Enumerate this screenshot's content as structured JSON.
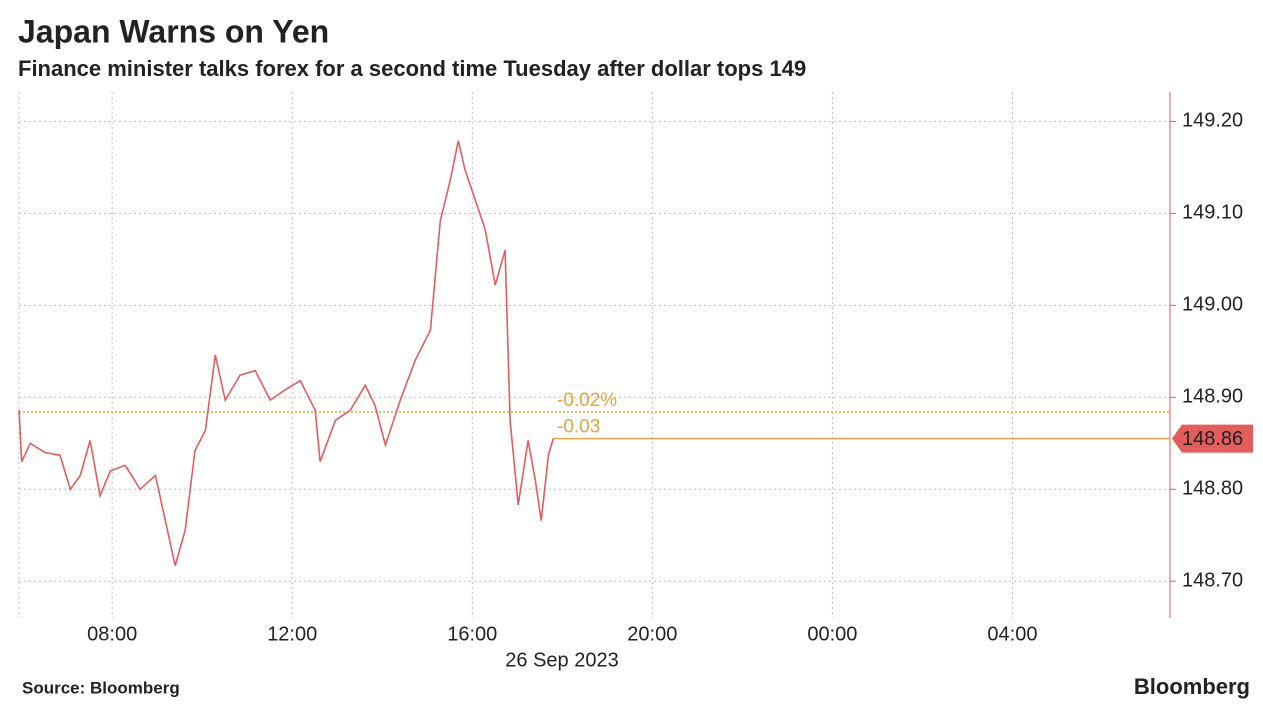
{
  "chart_data": {
    "type": "line",
    "title": "Japan Warns on Yen",
    "subtitle": "Finance minister talks forex for a second time Tuesday after dollar tops 149",
    "x_axis_label": "26 Sep 2023",
    "x": [
      5.93,
      5.99,
      6.18,
      6.51,
      6.84,
      7.07,
      7.29,
      7.51,
      7.73,
      7.96,
      8.29,
      8.62,
      8.96,
      9.18,
      9.4,
      9.62,
      9.84,
      10.07,
      10.29,
      10.51,
      10.84,
      11.18,
      11.51,
      11.84,
      12.18,
      12.51,
      12.62,
      12.96,
      13.29,
      13.62,
      13.84,
      14.07,
      14.4,
      14.73,
      15.07,
      15.29,
      15.51,
      15.69,
      15.84,
      16.07,
      16.29,
      16.51,
      16.73,
      16.84,
      17.02,
      17.24,
      17.4,
      17.53,
      17.69,
      17.8
    ],
    "series": [
      {
        "color": "#e35d5d",
        "values": [
          148.886,
          148.83,
          148.85,
          148.84,
          148.837,
          148.8,
          148.815,
          148.853,
          148.793,
          148.82,
          148.826,
          148.8,
          148.815,
          148.766,
          148.717,
          148.755,
          148.842,
          148.864,
          148.946,
          148.897,
          148.924,
          148.929,
          148.897,
          148.908,
          148.918,
          148.886,
          148.83,
          148.875,
          148.886,
          148.913,
          148.891,
          148.848,
          148.897,
          148.94,
          148.973,
          149.092,
          149.136,
          149.179,
          149.147,
          149.114,
          149.082,
          149.022,
          149.06,
          148.875,
          148.783,
          148.853,
          148.81,
          148.766,
          148.837,
          148.855
        ]
      }
    ],
    "xlim": [
      5.93,
      31.5
    ],
    "xticks": [
      {
        "value": 8,
        "label": "08:00"
      },
      {
        "value": 12,
        "label": "12:00"
      },
      {
        "value": 16,
        "label": "16:00"
      },
      {
        "value": 20,
        "label": "20:00"
      },
      {
        "value": 24,
        "label": "00:00"
      },
      {
        "value": 28,
        "label": "04:00"
      }
    ],
    "ylim": [
      148.66,
      149.232
    ],
    "yticks": [
      {
        "value": 148.7,
        "label": "148.70"
      },
      {
        "value": 148.8,
        "label": "148.80"
      },
      {
        "value": 148.9,
        "label": "148.90"
      },
      {
        "value": 149.0,
        "label": "149.00"
      },
      {
        "value": 149.1,
        "label": "149.10"
      },
      {
        "value": 149.2,
        "label": "149.20"
      }
    ],
    "grid": true,
    "reference_lines": [
      {
        "value": 148.884,
        "style": "dotted",
        "color": "#e3a53a"
      },
      {
        "value": 148.855,
        "style": "solid",
        "color": "#e3a53a"
      }
    ],
    "annotations": [
      "-0.02%",
      "-0.03"
    ],
    "last_value_label": "148.86",
    "source": "Source: Bloomberg",
    "brand": "Bloomberg"
  }
}
